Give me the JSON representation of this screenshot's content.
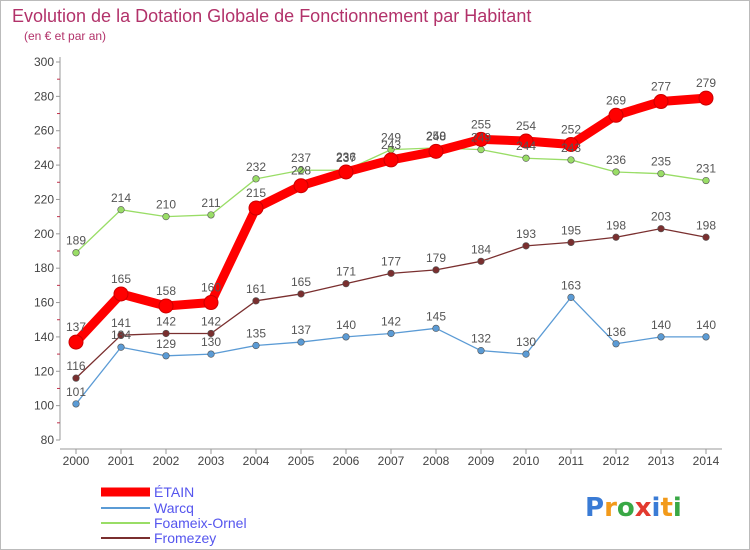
{
  "chart_data": {
    "type": "line",
    "title": "Evolution de la Dotation Globale de Fonctionnement par Habitant",
    "subtitle": "(en € et par an)",
    "xlabel": "",
    "ylabel": "",
    "x": [
      2000,
      2001,
      2002,
      2003,
      2004,
      2005,
      2006,
      2007,
      2008,
      2009,
      2010,
      2011,
      2012,
      2013,
      2014
    ],
    "ylim": [
      80,
      300
    ],
    "yticks": [
      80,
      100,
      120,
      140,
      160,
      180,
      200,
      220,
      240,
      260,
      280,
      300
    ],
    "grid": false,
    "legend_position": "bottom-left",
    "series": [
      {
        "name": "ÉTAIN",
        "color": "#ff0000",
        "values": [
          137,
          165,
          158,
          160,
          215,
          228,
          236,
          243,
          248,
          255,
          254,
          252,
          269,
          277,
          279
        ]
      },
      {
        "name": "Warcq",
        "color": "#5b9bd5",
        "values": [
          101,
          134,
          129,
          130,
          135,
          137,
          140,
          142,
          145,
          132,
          130,
          163,
          136,
          140,
          140
        ]
      },
      {
        "name": "Foameix-Ornel",
        "color": "#99dd66",
        "values": [
          189,
          214,
          210,
          211,
          232,
          237,
          237,
          249,
          250,
          249,
          244,
          243,
          236,
          235,
          231
        ]
      },
      {
        "name": "Fromezey",
        "color": "#7a2f2f",
        "values": [
          116,
          141,
          142,
          142,
          161,
          165,
          171,
          177,
          179,
          184,
          193,
          195,
          198,
          203,
          198
        ]
      }
    ]
  },
  "brand": {
    "text": "Proxiti"
  }
}
